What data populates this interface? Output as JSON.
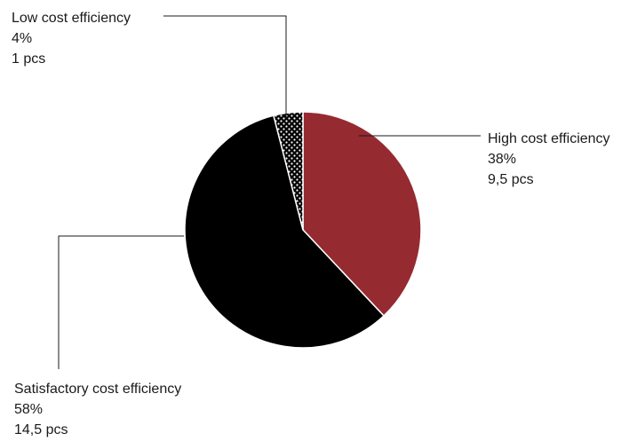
{
  "chart_data": {
    "type": "pie",
    "start_angle": "12 o'clock",
    "direction": "clockwise",
    "slices": [
      {
        "category": "High cost efficiency",
        "percent_label": "38%",
        "count_label": "9,5 pcs",
        "value": 9.5,
        "percent": 38,
        "color": "#962a31",
        "pattern": "solid"
      },
      {
        "category": "Satisfactory cost efficiency",
        "percent_label": "58%",
        "count_label": "14,5 pcs",
        "value": 14.5,
        "percent": 58,
        "color": "#000000",
        "pattern": "solid"
      },
      {
        "category": "Low cost efficiency",
        "percent_label": "4%",
        "count_label": "1 pcs",
        "value": 1,
        "percent": 4,
        "color": "#000000",
        "pattern": "white-dots-on-black"
      }
    ]
  }
}
